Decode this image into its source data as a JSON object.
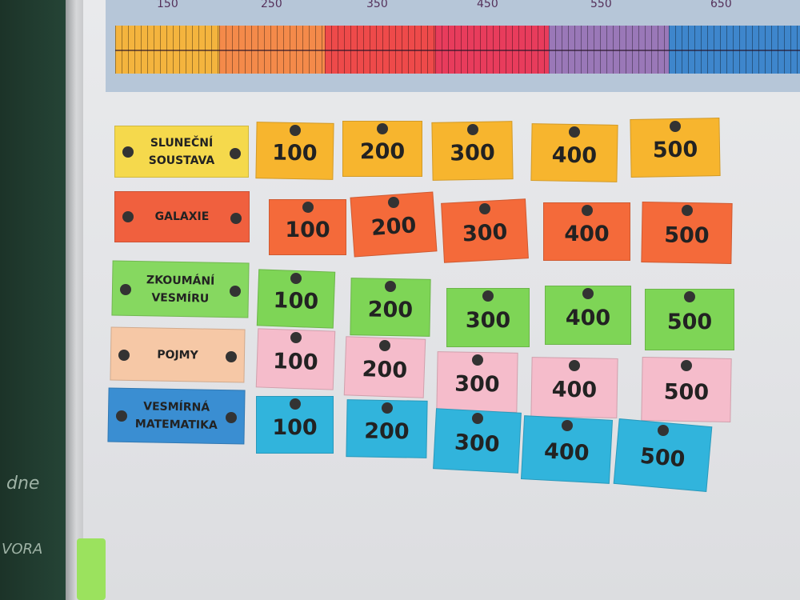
{
  "ruler": {
    "labels": [
      "150",
      "250",
      "350",
      "450",
      "550",
      "650"
    ],
    "colors": [
      "#f4b43e",
      "#f48a4a",
      "#ee4a4a",
      "#e83c5c",
      "#9a78b8",
      "#3e86cc"
    ]
  },
  "categories": [
    {
      "label": "SLUNEČNÍ SOUSTAVA",
      "color": "#f5d94c",
      "card_color": "#f7b52e"
    },
    {
      "label": "GALAXIE",
      "color": "#f0603e",
      "card_color": "#f46a3a"
    },
    {
      "label": "ZKOUMÁNÍ VESMÍRU",
      "color": "#86d860",
      "card_color": "#7ed556"
    },
    {
      "label": "POJMY",
      "color": "#f6c8a6",
      "card_color": "#f5bccb"
    },
    {
      "label": "VESMÍRNÁ MATEMATIKA",
      "color": "#3a8ed2",
      "card_color": "#31b4dc"
    }
  ],
  "points": [
    "100",
    "200",
    "300",
    "400",
    "500"
  ],
  "chalkboard_text": [
    "dne",
    "VORA"
  ]
}
